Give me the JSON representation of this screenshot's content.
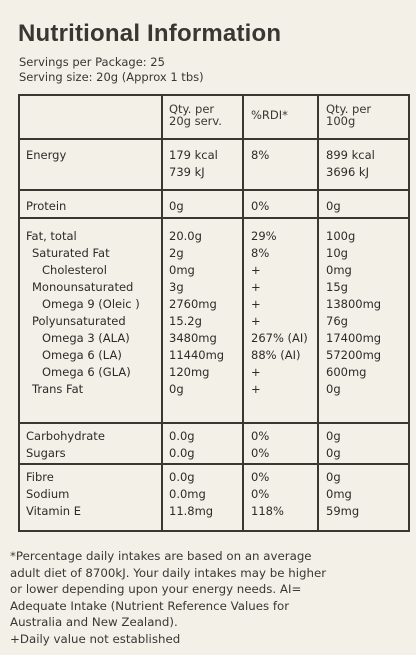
{
  "title": "Nutritional Information",
  "servings_per_package": "Servings per Package: 25",
  "serving_size": "Serving size: 20g (Approx 1 tbs)",
  "headers": {
    "per_serving": [
      "Qty. per",
      "20g serv."
    ],
    "rdi": "%RDI*",
    "per_100g": [
      "Qty. per",
      "100g"
    ]
  },
  "rows": [
    {
      "name": "Energy",
      "serv": "179 kcal",
      "rdi": "8%",
      "per100": "899 kcal"
    },
    {
      "name": "",
      "serv": "739 kJ",
      "rdi": "",
      "per100": "3696 kJ"
    },
    {
      "name": "Protein",
      "serv": "0g",
      "rdi": "0%",
      "per100": "0g"
    },
    {
      "name": "Fat, total",
      "serv": "20.0g",
      "rdi": "29%",
      "per100": "100g"
    },
    {
      "name": "Saturated Fat",
      "serv": "2g",
      "rdi": "8%",
      "per100": "10g"
    },
    {
      "name": "Cholesterol",
      "serv": "0mg",
      "rdi": "+",
      "per100": "0mg"
    },
    {
      "name": "Monounsaturated",
      "serv": "3g",
      "rdi": "+",
      "per100": "15g"
    },
    {
      "name": "Omega 9 (Oleic )",
      "serv": "2760mg",
      "rdi": "+",
      "per100": "13800mg"
    },
    {
      "name": "Polyunsaturated",
      "serv": "15.2g",
      "rdi": "+",
      "per100": "76g"
    },
    {
      "name": "Omega 3 (ALA)",
      "serv": "3480mg",
      "rdi": "267% (AI)",
      "per100": "17400mg"
    },
    {
      "name": "Omega 6 (LA)",
      "serv": "11440mg",
      "rdi": "88% (AI)",
      "per100": "57200mg"
    },
    {
      "name": "Omega 6 (GLA)",
      "serv": "120mg",
      "rdi": "+",
      "per100": "600mg"
    },
    {
      "name": "Trans Fat",
      "serv": "0g",
      "rdi": "+",
      "per100": "0g"
    },
    {
      "name": "Carbohydrate",
      "serv": "0.0g",
      "rdi": "0%",
      "per100": "0g"
    },
    {
      "name": "Sugars",
      "serv": "0.0g",
      "rdi": "0%",
      "per100": "0g"
    },
    {
      "name": "Fibre",
      "serv": "0.0g",
      "rdi": "0%",
      "per100": "0g"
    },
    {
      "name": "Sodium",
      "serv": "0.0mg",
      "rdi": "0%",
      "per100": "0mg"
    },
    {
      "name": "Vitamin E",
      "serv": "11.8mg",
      "rdi": "118%",
      "per100": "59mg"
    }
  ],
  "footnote": [
    "*Percentage daily intakes are based on an average",
    "adult diet of 8700kJ. Your daily intakes may be higher",
    "or lower depending upon your energy needs. AI=",
    "Adequate Intake (Nutrient Reference Values for",
    "Australia and New Zealand).",
    "+Daily value not established"
  ]
}
